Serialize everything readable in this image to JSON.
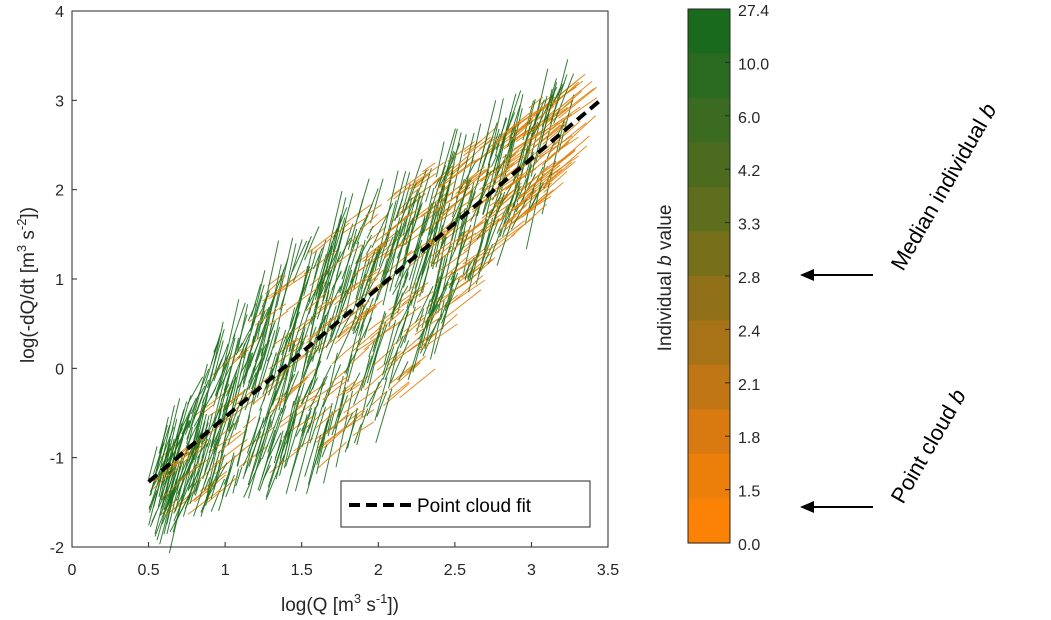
{
  "chart_data": {
    "type": "line",
    "xlabel_main": "log(Q [m",
    "xlabel_sup1": "3",
    "xlabel_mid": " s",
    "xlabel_sup2": "-1",
    "xlabel_end": "])",
    "ylabel_main": "log(-dQ/dt [m",
    "ylabel_sup1": "3",
    "ylabel_mid": " s",
    "ylabel_sup2": "-2",
    "ylabel_end": "])",
    "xlim": [
      0,
      3.5
    ],
    "ylim": [
      -2,
      4
    ],
    "x_ticks": [
      "0",
      "0.5",
      "1",
      "1.5",
      "2",
      "2.5",
      "3",
      "3.5"
    ],
    "y_ticks": [
      "-2",
      "-1",
      "0",
      "1",
      "2",
      "3",
      "4"
    ],
    "grid": false,
    "legend_position": "bottom-right",
    "series": [
      {
        "name": "Point cloud fit",
        "style": "dashed",
        "color": "#000000",
        "x": [
          0.5,
          3.45
        ],
        "y": [
          -1.27,
          3.0
        ]
      }
    ],
    "recession_segments": {
      "x_range": [
        0.5,
        3.3
      ],
      "band_lower": {
        "x": [
          0.5,
          1.0,
          1.5,
          2.0,
          2.5,
          3.0,
          3.3
        ],
        "y": [
          -1.7,
          -1.4,
          -1.1,
          -0.6,
          0.9,
          1.9,
          2.5
        ]
      },
      "band_upper": {
        "x": [
          0.5,
          1.0,
          1.5,
          2.0,
          2.5,
          3.0,
          3.3
        ],
        "y": [
          -1.0,
          0.5,
          1.4,
          2.0,
          2.5,
          3.0,
          3.3
        ]
      }
    },
    "colorbar": {
      "label_prefix": "Individual",
      "label_italic": "b",
      "label_suffix": "value",
      "ticks": [
        "27.4",
        "10.0",
        "6.0",
        "4.2",
        "3.3",
        "2.8",
        "2.4",
        "2.1",
        "1.8",
        "1.5",
        "0.0"
      ],
      "colors": [
        "#1a6a1e",
        "#2a6b21",
        "#3b6b20",
        "#4c6b1f",
        "#5f6e1c",
        "#776f1a",
        "#907018",
        "#a87317",
        "#c07615",
        "#d97a10",
        "#ec7e0a",
        "#fb8205"
      ]
    },
    "annotations": [
      {
        "text_prefix": "Median individual ",
        "text_italic": "b",
        "points_to": "2.8"
      },
      {
        "text_prefix": "Point cloud ",
        "text_italic": "b",
        "points_to": "1.5"
      }
    ]
  },
  "colors": {
    "green": "#1b6e1b",
    "orange": "#e0820e",
    "fit_line": "#000000"
  }
}
